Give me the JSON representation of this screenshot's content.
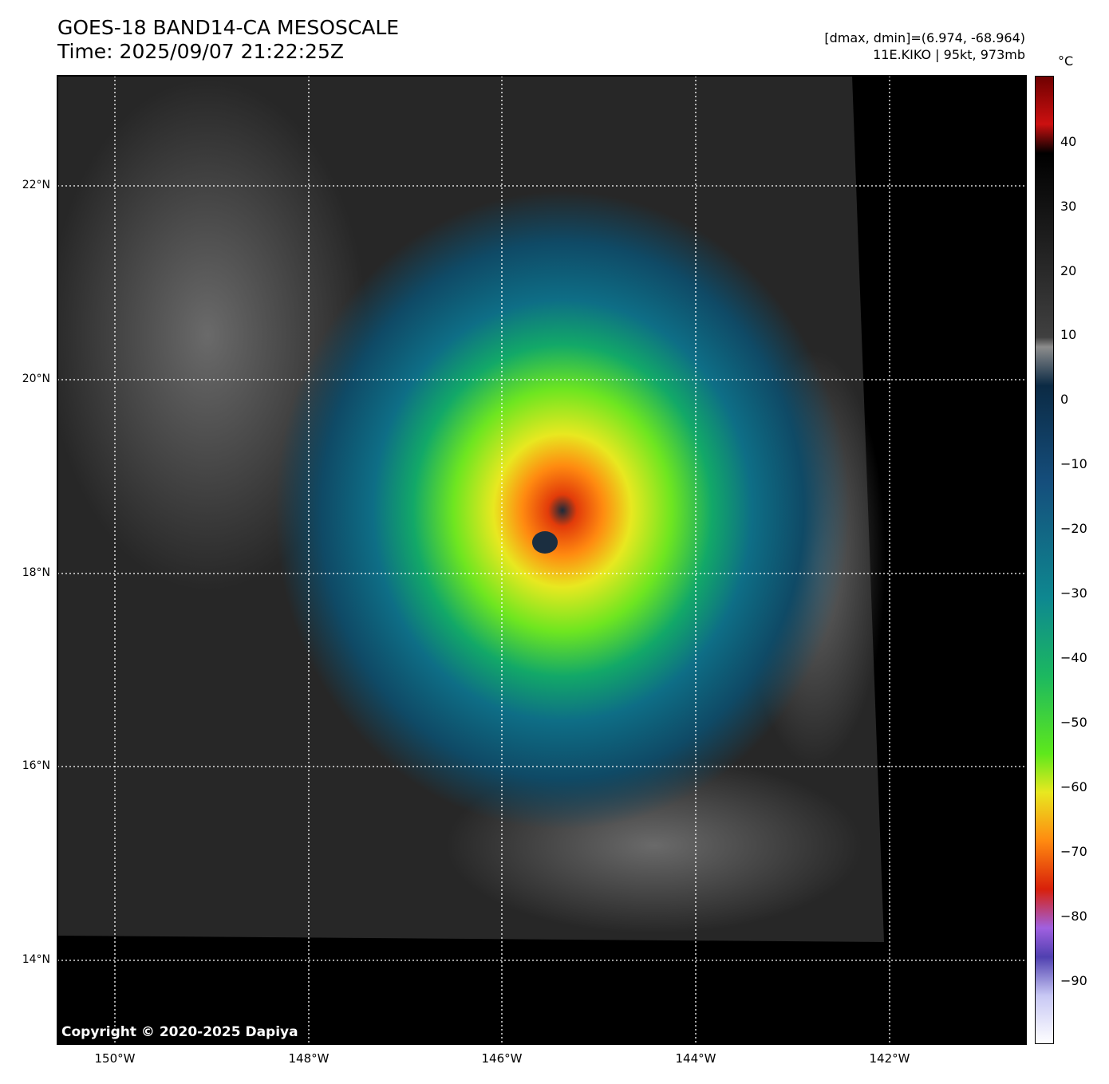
{
  "header": {
    "title_line1": "GOES-18 BAND14-CA MESOSCALE",
    "title_line2": "Time: 2025/09/07 21:22:25Z",
    "info_line1": "[dmax, dmin]=(6.974, -68.964)",
    "info_line2": "11E.KIKO | 95kt, 973mb"
  },
  "axes": {
    "lat_labels": [
      "22°N",
      "20°N",
      "18°N",
      "16°N",
      "14°N"
    ],
    "lon_labels": [
      "150°W",
      "148°W",
      "146°W",
      "144°W",
      "142°W"
    ]
  },
  "colorbar": {
    "unit": "°C",
    "ticks": [
      "40",
      "30",
      "20",
      "10",
      "0",
      "−10",
      "−20",
      "−30",
      "−40",
      "−50",
      "−60",
      "−70",
      "−80",
      "−90"
    ]
  },
  "copyright": "Copyright © 2020-2025 Dapiya"
}
